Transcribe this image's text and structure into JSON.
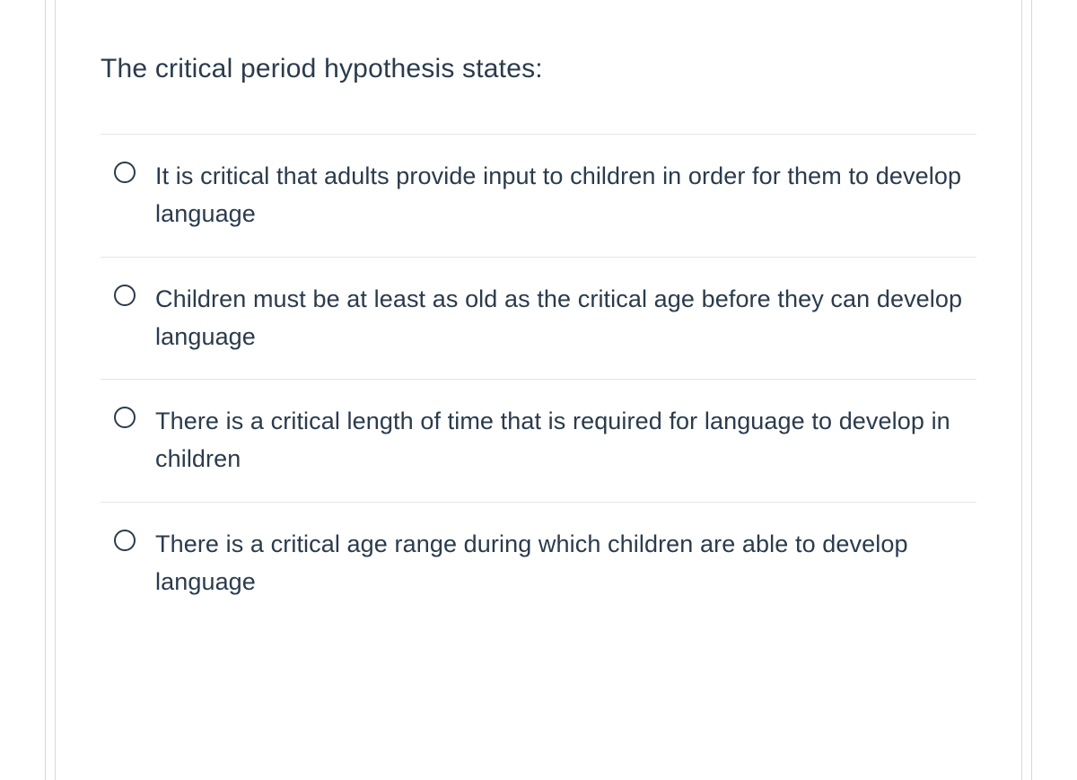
{
  "question": {
    "prompt": "The critical period hypothesis states:",
    "options": [
      {
        "label": "It is critical that adults provide input to children in order for them to develop language",
        "selected": false
      },
      {
        "label": "Children must be at least as old as the critical age before they can develop language",
        "selected": false
      },
      {
        "label": "There is a critical length of time that is required for language to develop in children",
        "selected": false
      },
      {
        "label": "There is a critical age range during which children are able to develop language",
        "selected": false
      }
    ]
  },
  "colors": {
    "text_primary": "#2a3b4c",
    "border_light": "#e5e5e5",
    "border_outer": "#d8d8d8",
    "background": "#ffffff"
  },
  "typography": {
    "question_fontsize": 30,
    "option_fontsize": 27,
    "font_weight": 300,
    "line_height": 1.55
  }
}
